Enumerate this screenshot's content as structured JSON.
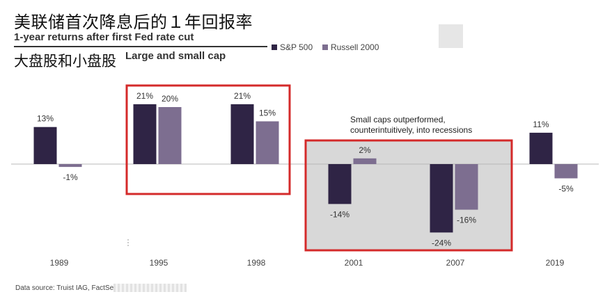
{
  "header": {
    "title_cn": "美联储首次降息后的１年回报率",
    "title_en": "1-year returns after first Fed rate cut",
    "subtitle_cn": "大盘股和小盘股",
    "subtitle_en": "Large and small cap"
  },
  "legend": {
    "sp500": "S&P 500",
    "russell2000": "Russell 2000"
  },
  "annotation": {
    "line1": "Small caps outperformed,",
    "line2": "counterintuitively, into recessions"
  },
  "footer": {
    "source": "Data source: Truist IAG, FactSet."
  },
  "colors": {
    "sp500": "#2f2445",
    "russell2000": "#7d6e90",
    "highlight_box": "#d42a2a",
    "recession_fill": "#d8d8d8"
  },
  "chart_data": {
    "type": "bar",
    "title": "1-year returns after first Fed rate cut",
    "xlabel": "",
    "ylabel": "",
    "ylim": [
      -28,
      24
    ],
    "categories": [
      "1989",
      "1995",
      "1998",
      "2001",
      "2007",
      "2019"
    ],
    "series": [
      {
        "name": "S&P 500",
        "values": [
          13,
          21,
          21,
          -14,
          -24,
          11
        ],
        "labels": [
          "13%",
          "21%",
          "21%",
          "-14%",
          "-24%",
          "11%"
        ]
      },
      {
        "name": "Russell 2000",
        "values": [
          -1,
          20,
          15,
          2,
          -16,
          -5
        ],
        "labels": [
          "-1%",
          "20%",
          "15%",
          "2%",
          "-16%",
          "-5%"
        ]
      }
    ],
    "highlights": [
      {
        "categories": [
          "1995",
          "1998"
        ],
        "style": "outline"
      },
      {
        "categories": [
          "2001",
          "2007"
        ],
        "style": "shaded-outline"
      }
    ],
    "grid": false,
    "legend_position": "top"
  }
}
